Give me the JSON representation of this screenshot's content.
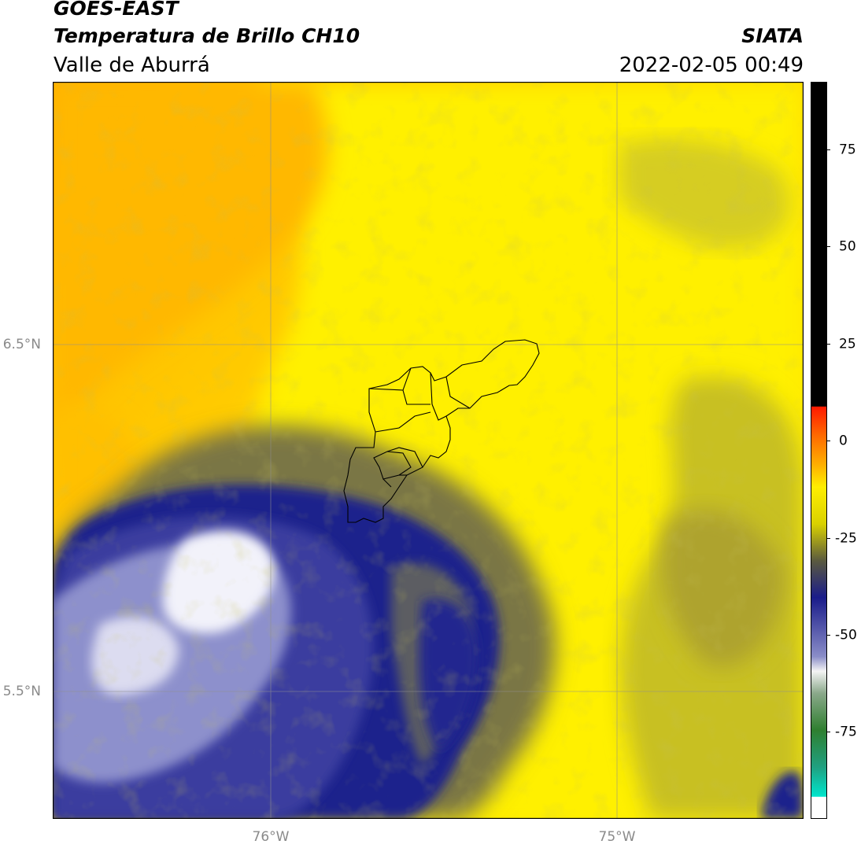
{
  "header": {
    "satellite": "GOES-EAST",
    "product": "Temperatura de Brillo CH10",
    "region": "Valle de Aburrá",
    "agency": "SIATA",
    "timestamp": "2022-02-05 00:49"
  },
  "map": {
    "lat_labels": [
      "6.5°N",
      "5.5°N"
    ],
    "lon_labels": [
      "76°W",
      "75°W"
    ],
    "gridlines": true,
    "boundary_overlay": "Valle de Aburrá municipalities outline",
    "colors": {
      "warm_orange": "#ffb300",
      "yellow": "#ffee00",
      "olive": "#b9b12a",
      "dark_olive": "#6f6e4a",
      "navy": "#1c1f8c",
      "lavender": "#9fa2d6",
      "white_cloud": "#eeeef7"
    }
  },
  "colorbar": {
    "tick_labels": [
      "75",
      "50",
      "25",
      "0",
      "-25",
      "-50",
      "-75"
    ],
    "tick_values": [
      75,
      50,
      25,
      0,
      -25,
      -50,
      -75
    ],
    "range": [
      -95,
      92
    ],
    "unit": ""
  }
}
